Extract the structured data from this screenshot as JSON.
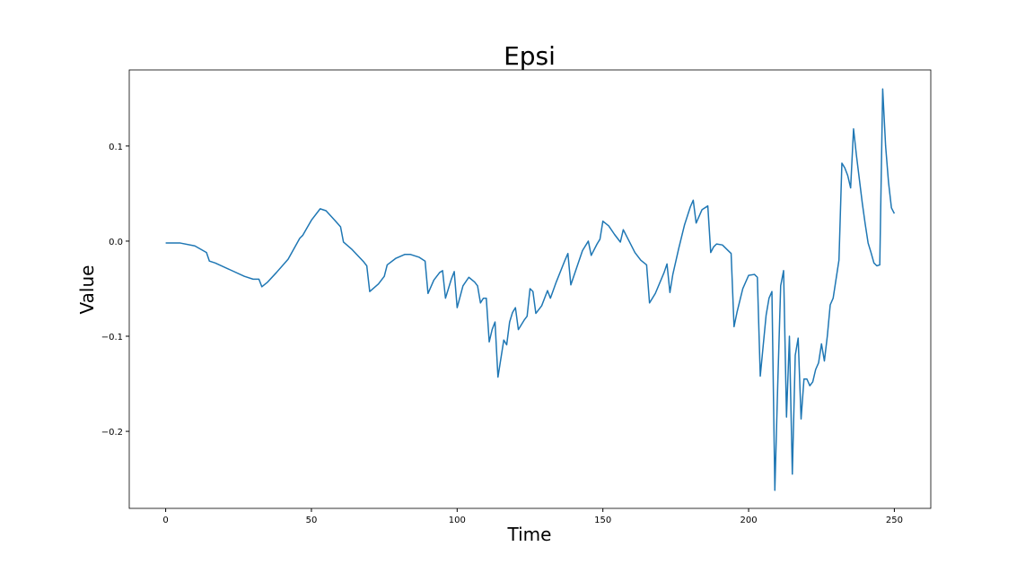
{
  "chart_data": {
    "type": "line",
    "title": "Epsi",
    "x_label": "Time",
    "y_label": "Value",
    "x": [
      0,
      5,
      10,
      14,
      15,
      17,
      22,
      27,
      30,
      32,
      33,
      35,
      38,
      42,
      46,
      47,
      50,
      53,
      55,
      58,
      60,
      61,
      64,
      68,
      69,
      70,
      73,
      75,
      76,
      79,
      82,
      84,
      87,
      89,
      90,
      92,
      94,
      95,
      96,
      98,
      99,
      100,
      102,
      104,
      106,
      107,
      108,
      109,
      110,
      111,
      112,
      113,
      114,
      116,
      117,
      118,
      119,
      120,
      121,
      123,
      124,
      125,
      126,
      127,
      129,
      131,
      132,
      134,
      137,
      138,
      139,
      141,
      143,
      145,
      146,
      148,
      149,
      150,
      152,
      154,
      156,
      157,
      159,
      161,
      163,
      165,
      166,
      168,
      171,
      172,
      173,
      174,
      176,
      178,
      180,
      181,
      182,
      184,
      186,
      187,
      188,
      189,
      191,
      193,
      194,
      195,
      196,
      198,
      200,
      202,
      203,
      204,
      205,
      206,
      207,
      208,
      209,
      210,
      211,
      212,
      213,
      214,
      215,
      216,
      217,
      218,
      219,
      220,
      221,
      222,
      223,
      224,
      225,
      226,
      227,
      228,
      229,
      230,
      231,
      232,
      233,
      234,
      235,
      236,
      237,
      238,
      239,
      240,
      241,
      242,
      243,
      244,
      245,
      246,
      247,
      248,
      249,
      250
    ],
    "series": [
      {
        "name": "Epsi",
        "color": "#1f77b4",
        "values": [
          -0.002,
          -0.002,
          -0.005,
          -0.012,
          -0.021,
          -0.023,
          -0.03,
          -0.037,
          -0.04,
          -0.04,
          -0.048,
          -0.043,
          -0.033,
          -0.019,
          0.003,
          0.006,
          0.022,
          0.034,
          0.032,
          0.022,
          0.015,
          -0.001,
          -0.009,
          -0.022,
          -0.026,
          -0.053,
          -0.045,
          -0.037,
          -0.025,
          -0.018,
          -0.014,
          -0.014,
          -0.017,
          -0.021,
          -0.055,
          -0.041,
          -0.033,
          -0.031,
          -0.06,
          -0.04,
          -0.032,
          -0.07,
          -0.047,
          -0.038,
          -0.043,
          -0.047,
          -0.065,
          -0.06,
          -0.06,
          -0.106,
          -0.093,
          -0.085,
          -0.143,
          -0.104,
          -0.109,
          -0.085,
          -0.075,
          -0.07,
          -0.093,
          -0.083,
          -0.079,
          -0.05,
          -0.053,
          -0.076,
          -0.068,
          -0.052,
          -0.06,
          -0.043,
          -0.02,
          -0.013,
          -0.046,
          -0.028,
          -0.01,
          0.0,
          -0.015,
          -0.003,
          0.002,
          0.021,
          0.016,
          0.007,
          -0.001,
          0.012,
          0.0,
          -0.012,
          -0.02,
          -0.025,
          -0.065,
          -0.055,
          -0.033,
          -0.024,
          -0.054,
          -0.035,
          -0.008,
          0.017,
          0.036,
          0.043,
          0.019,
          0.033,
          0.037,
          -0.012,
          -0.006,
          -0.003,
          -0.004,
          -0.01,
          -0.013,
          -0.09,
          -0.075,
          -0.05,
          -0.036,
          -0.035,
          -0.038,
          -0.142,
          -0.11,
          -0.078,
          -0.06,
          -0.053,
          -0.262,
          -0.15,
          -0.047,
          -0.031,
          -0.185,
          -0.1,
          -0.245,
          -0.12,
          -0.102,
          -0.187,
          -0.145,
          -0.145,
          -0.152,
          -0.148,
          -0.135,
          -0.128,
          -0.108,
          -0.126,
          -0.1,
          -0.067,
          -0.06,
          -0.04,
          -0.02,
          0.082,
          0.077,
          0.069,
          0.056,
          0.118,
          0.09,
          0.065,
          0.04,
          0.018,
          -0.002,
          -0.012,
          -0.023,
          -0.026,
          -0.025,
          0.16,
          0.1,
          0.062,
          0.035,
          0.029
        ]
      }
    ],
    "xlim": [
      -12.5,
      262.5
    ],
    "xticks": [
      0,
      50,
      100,
      150,
      200,
      250
    ],
    "ylim": [
      -0.281,
      0.18
    ],
    "yticks": [
      {
        "value": -0.2,
        "label": "−0.2"
      },
      {
        "value": -0.1,
        "label": "−0.1"
      },
      {
        "value": 0,
        "label": "0.0"
      },
      0.1
    ],
    "grid": false
  }
}
